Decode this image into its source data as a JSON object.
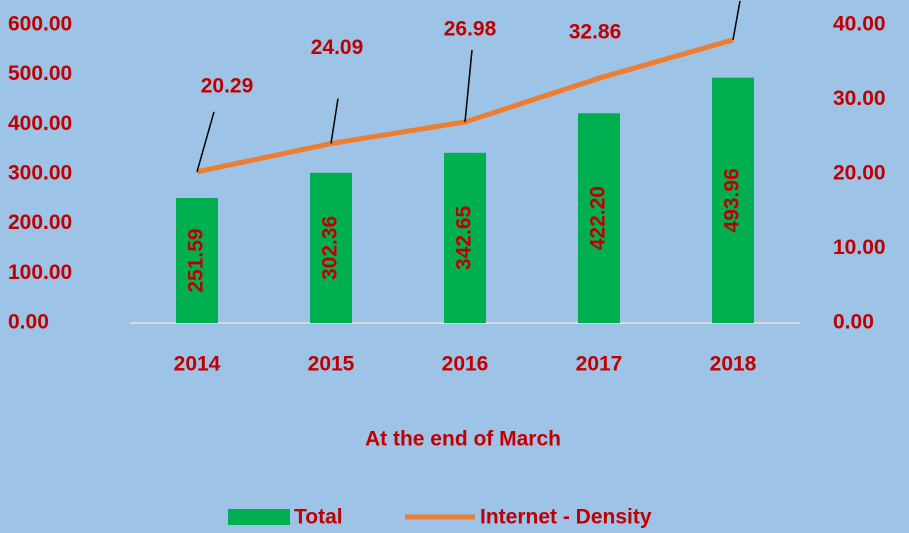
{
  "chart_data": {
    "type": "bar_line",
    "categories": [
      "2014",
      "2015",
      "2016",
      "2017",
      "2018"
    ],
    "series": [
      {
        "name": "Total",
        "type": "bar",
        "color": "#00b050",
        "values": [
          251.59,
          302.36,
          342.65,
          422.2,
          493.96
        ],
        "value_labels": [
          "251.59",
          "302.36",
          "342.65",
          "422.20",
          "493.96"
        ]
      },
      {
        "name": "Internet - Density",
        "type": "line",
        "axis": "y2",
        "color": "#ed7d31",
        "values": [
          20.29,
          24.09,
          26.98,
          32.86,
          38.0
        ],
        "value_labels": [
          "20.29",
          "24.09",
          "26.98",
          "32.86",
          null
        ]
      }
    ],
    "ylim": [
      0,
      600
    ],
    "yticks": [
      {
        "value": 0,
        "label": "0.00"
      },
      {
        "value": 100,
        "label": "100.00"
      },
      {
        "value": 200,
        "label": "200.00"
      },
      {
        "value": 300,
        "label": "300.00"
      },
      {
        "value": 400,
        "label": "400.00"
      },
      {
        "value": 500,
        "label": "500.00"
      },
      {
        "value": 600,
        "label": "600.00"
      }
    ],
    "y2lim": [
      0,
      40
    ],
    "y2ticks": [
      {
        "value": 0,
        "label": "0.00"
      },
      {
        "value": 10,
        "label": "10.00"
      },
      {
        "value": 20,
        "label": "20.00"
      },
      {
        "value": 30,
        "label": "30.00"
      },
      {
        "value": 40,
        "label": "40.00"
      }
    ],
    "xlabel": "At the end of March",
    "legend": "bottom"
  }
}
